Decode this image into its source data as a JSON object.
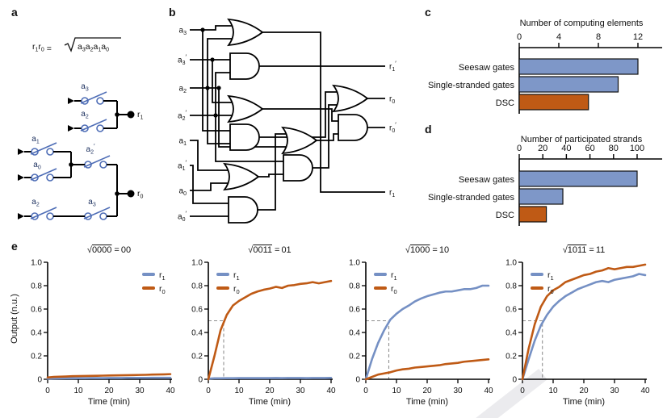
{
  "colors": {
    "series_blue": "#7590c4",
    "series_orange": "#bf5a15",
    "bar_blue": "#7e97c8",
    "bar_orange": "#bf5a15",
    "switch_blue": "#4e6db6",
    "label_navy": "#1b2f5e",
    "axis_black": "#1a1a1a",
    "dashed_gray": "#8f8f8f",
    "watermark_gray": "#ebebee"
  },
  "figure": {
    "panels": {
      "a": {
        "label": "a",
        "formula": {
          "lhs": [
            {
              "b": "r",
              "s": "1"
            },
            {
              "b": "r",
              "s": "0"
            }
          ],
          "equals": "=",
          "sqrt": "√",
          "radicand": [
            {
              "b": "a",
              "s": "3"
            },
            {
              "b": "a",
              "s": "2"
            },
            {
              "b": "a",
              "s": "1"
            },
            {
              "b": "a",
              "s": "0"
            }
          ]
        },
        "switch_labels": [
          {
            "b": "a",
            "s": "3"
          },
          {
            "b": "a",
            "s": "2"
          },
          {
            "b": "a",
            "s": "1"
          },
          {
            "b": "a",
            "s": "0"
          },
          {
            "b": "a",
            "s": "2",
            "p": true
          },
          {
            "b": "a",
            "s": "2"
          },
          {
            "b": "a",
            "s": "3"
          }
        ],
        "output_labels": [
          {
            "b": "r",
            "s": "1"
          },
          {
            "b": "r",
            "s": "0"
          }
        ]
      },
      "b": {
        "label": "b",
        "inputs": [
          {
            "b": "a",
            "s": "3"
          },
          {
            "b": "a",
            "s": "3",
            "p": true
          },
          {
            "b": "a",
            "s": "2"
          },
          {
            "b": "a",
            "s": "2",
            "p": true
          },
          {
            "b": "a",
            "s": "1"
          },
          {
            "b": "a",
            "s": "1",
            "p": true
          },
          {
            "b": "a",
            "s": "0"
          },
          {
            "b": "a",
            "s": "0",
            "p": true
          }
        ],
        "outputs": [
          {
            "b": "r",
            "s": "1",
            "p": true
          },
          {
            "b": "r",
            "s": "0"
          },
          {
            "b": "r",
            "s": "0",
            "p": true
          },
          {
            "b": "r",
            "s": "1"
          }
        ]
      },
      "c": {
        "label": "c"
      },
      "d": {
        "label": "d"
      },
      "e": {
        "label": "e"
      }
    }
  },
  "chart_data": [
    {
      "id": "c",
      "type": "bar",
      "orientation": "horizontal",
      "title": "Number of computing elements",
      "categories": [
        "Seesaw gates",
        "Single-stranded gates",
        "DSC"
      ],
      "values": [
        12,
        10,
        7
      ],
      "bar_colors": [
        "blue",
        "blue",
        "orange"
      ],
      "xticks": [
        0,
        4,
        8,
        12
      ],
      "xlim": [
        0,
        14.4
      ]
    },
    {
      "id": "d",
      "type": "bar",
      "orientation": "horizontal",
      "title": "Number of participated strands",
      "categories": [
        "Seesaw gates",
        "Single-stranded gates",
        "DSC"
      ],
      "values": [
        100,
        37,
        23
      ],
      "bar_colors": [
        "blue",
        "blue",
        "orange"
      ],
      "xticks": [
        0,
        20,
        40,
        60,
        80,
        100
      ],
      "xlim": [
        0,
        121
      ]
    },
    {
      "id": "e1",
      "type": "line",
      "title_parts": {
        "sqrt": "√",
        "radicand": "0000",
        "equals": "=",
        "result": "00"
      },
      "xlabel": "Time (min)",
      "ylabel": "Output (n.u.)",
      "xlim": [
        0,
        40
      ],
      "ylim": [
        0,
        1
      ],
      "xticks": [
        0,
        10,
        20,
        30,
        40
      ],
      "yticks": [
        0,
        0.2,
        0.4,
        0.6,
        0.8,
        1
      ],
      "ytick_labels": [
        "0",
        "0.2",
        "0.4",
        "0.6",
        "0.8",
        "1.0"
      ],
      "legend": [
        {
          "b": "r",
          "s": "1",
          "color": "blue"
        },
        {
          "b": "r",
          "s": "0",
          "color": "orange"
        }
      ],
      "legend_pos": "right",
      "guide": null,
      "t": [
        0,
        2,
        4,
        6,
        8,
        10,
        12,
        14,
        16,
        18,
        20,
        22,
        24,
        26,
        28,
        30,
        32,
        34,
        36,
        38,
        40
      ],
      "series": [
        {
          "name": "r1",
          "color": "blue",
          "values": [
            0.005,
            0.006,
            0.007,
            0.008,
            0.008,
            0.009,
            0.009,
            0.01,
            0.01,
            0.01,
            0.011,
            0.011,
            0.011,
            0.012,
            0.012,
            0.012,
            0.012,
            0.013,
            0.013,
            0.013,
            0.013
          ]
        },
        {
          "name": "r0",
          "color": "orange",
          "values": [
            0.015,
            0.02,
            0.022,
            0.024,
            0.026,
            0.027,
            0.028,
            0.029,
            0.03,
            0.031,
            0.032,
            0.033,
            0.034,
            0.035,
            0.036,
            0.037,
            0.038,
            0.04,
            0.041,
            0.042,
            0.044
          ]
        }
      ]
    },
    {
      "id": "e2",
      "type": "line",
      "title_parts": {
        "sqrt": "√",
        "radicand": "0011",
        "equals": "=",
        "result": "01"
      },
      "xlabel": "Time (min)",
      "ylabel": "Output (n.u.)",
      "xlim": [
        0,
        40
      ],
      "ylim": [
        0,
        1
      ],
      "xticks": [
        0,
        10,
        20,
        30,
        40
      ],
      "yticks": [
        0,
        0.2,
        0.4,
        0.6,
        0.8,
        1
      ],
      "ytick_labels": [
        "0",
        "0.2",
        "0.4",
        "0.6",
        "0.8",
        "1.0"
      ],
      "legend": [
        {
          "b": "r",
          "s": "1",
          "color": "blue"
        },
        {
          "b": "r",
          "s": "0",
          "color": "orange"
        }
      ],
      "legend_pos": "left",
      "guide": {
        "x": 5,
        "y": 0.5
      },
      "t": [
        0,
        2,
        4,
        6,
        8,
        10,
        12,
        14,
        16,
        18,
        20,
        22,
        24,
        26,
        28,
        30,
        32,
        34,
        36,
        38,
        40
      ],
      "series": [
        {
          "name": "r1",
          "color": "blue",
          "values": [
            0.005,
            0.008,
            0.008,
            0.009,
            0.009,
            0.01,
            0.01,
            0.01,
            0.01,
            0.01,
            0.01,
            0.011,
            0.01,
            0.011,
            0.011,
            0.011,
            0.01,
            0.011,
            0.011,
            0.011,
            0.012
          ]
        },
        {
          "name": "r0",
          "color": "orange",
          "values": [
            0.0,
            0.2,
            0.42,
            0.55,
            0.63,
            0.67,
            0.7,
            0.73,
            0.75,
            0.765,
            0.775,
            0.79,
            0.78,
            0.8,
            0.805,
            0.815,
            0.82,
            0.83,
            0.82,
            0.83,
            0.84
          ]
        }
      ]
    },
    {
      "id": "e3",
      "type": "line",
      "title_parts": {
        "sqrt": "√",
        "radicand": "1000",
        "equals": "=",
        "result": "10"
      },
      "xlabel": "Time (min)",
      "ylabel": "Output (n.u.)",
      "xlim": [
        0,
        40
      ],
      "ylim": [
        0,
        1
      ],
      "xticks": [
        0,
        10,
        20,
        30,
        40
      ],
      "yticks": [
        0,
        0.2,
        0.4,
        0.6,
        0.8,
        1
      ],
      "ytick_labels": [
        "0",
        "0.2",
        "0.4",
        "0.6",
        "0.8",
        "1.0"
      ],
      "legend": [
        {
          "b": "r",
          "s": "1",
          "color": "blue"
        },
        {
          "b": "r",
          "s": "0",
          "color": "orange"
        }
      ],
      "legend_pos": "left",
      "guide": {
        "x": 7.5,
        "y": 0.5
      },
      "t": [
        0,
        2,
        4,
        6,
        8,
        10,
        12,
        14,
        16,
        18,
        20,
        22,
        24,
        26,
        28,
        30,
        32,
        34,
        36,
        38,
        40
      ],
      "series": [
        {
          "name": "r1",
          "color": "blue",
          "values": [
            0.0,
            0.17,
            0.31,
            0.42,
            0.51,
            0.56,
            0.6,
            0.63,
            0.665,
            0.69,
            0.71,
            0.725,
            0.74,
            0.75,
            0.75,
            0.76,
            0.77,
            0.77,
            0.78,
            0.8,
            0.8
          ]
        },
        {
          "name": "r0",
          "color": "orange",
          "values": [
            0.0,
            0.02,
            0.04,
            0.05,
            0.06,
            0.075,
            0.085,
            0.09,
            0.1,
            0.105,
            0.11,
            0.115,
            0.12,
            0.13,
            0.135,
            0.14,
            0.15,
            0.155,
            0.16,
            0.165,
            0.17
          ]
        }
      ]
    },
    {
      "id": "e4",
      "type": "line",
      "title_parts": {
        "sqrt": "√",
        "radicand": "1011",
        "equals": "=",
        "result": "11"
      },
      "xlabel": "Time (min)",
      "ylabel": "Output (n.u.)",
      "xlim": [
        0,
        40
      ],
      "ylim": [
        0,
        1
      ],
      "xticks": [
        0,
        10,
        20,
        30,
        40
      ],
      "yticks": [
        0,
        0.2,
        0.4,
        0.6,
        0.8,
        1
      ],
      "ytick_labels": [
        "0",
        "0.2",
        "0.4",
        "0.6",
        "0.8",
        "1.0"
      ],
      "legend": [
        {
          "b": "r",
          "s": "1",
          "color": "blue"
        },
        {
          "b": "r",
          "s": "0",
          "color": "orange"
        }
      ],
      "legend_pos": "left",
      "guide": {
        "x": 6.5,
        "y": 0.5
      },
      "t": [
        0,
        2,
        4,
        6,
        8,
        10,
        12,
        14,
        16,
        18,
        20,
        22,
        24,
        26,
        28,
        30,
        32,
        34,
        36,
        38,
        40
      ],
      "series": [
        {
          "name": "r1",
          "color": "blue",
          "values": [
            0.0,
            0.17,
            0.33,
            0.46,
            0.55,
            0.62,
            0.67,
            0.71,
            0.74,
            0.77,
            0.79,
            0.81,
            0.83,
            0.84,
            0.83,
            0.85,
            0.86,
            0.87,
            0.88,
            0.9,
            0.89
          ]
        },
        {
          "name": "r0",
          "color": "orange",
          "values": [
            0.0,
            0.26,
            0.47,
            0.62,
            0.71,
            0.76,
            0.79,
            0.83,
            0.85,
            0.87,
            0.89,
            0.9,
            0.92,
            0.93,
            0.95,
            0.94,
            0.95,
            0.96,
            0.96,
            0.97,
            0.98
          ]
        }
      ]
    }
  ]
}
